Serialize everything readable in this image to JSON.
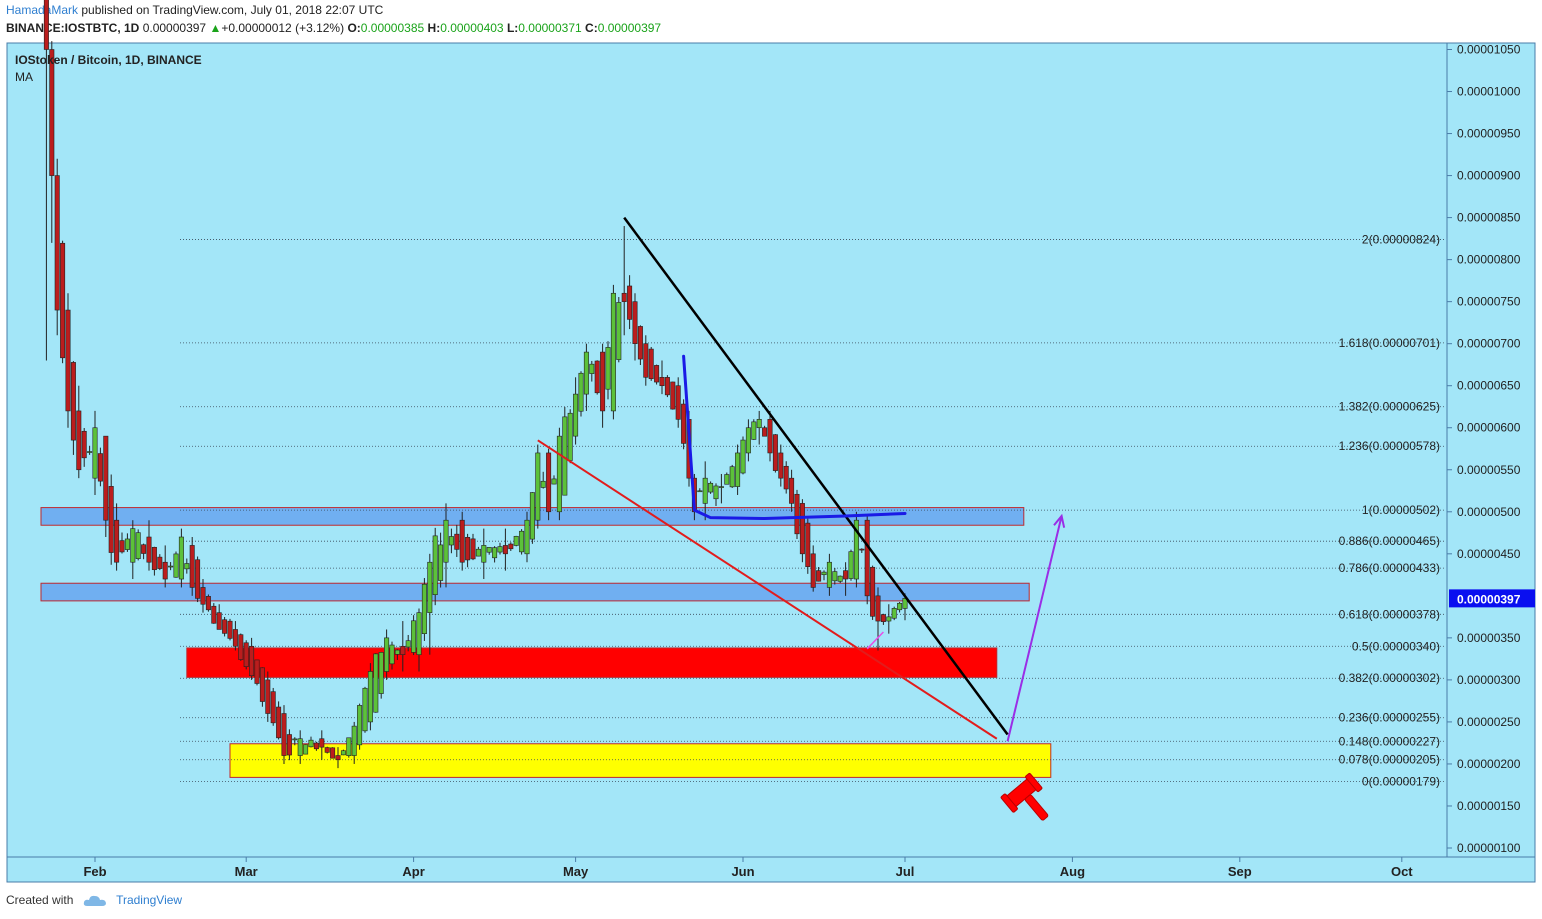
{
  "header": {
    "author": "HamadaMark",
    "published": "published on TradingView.com, July 01, 2018 22:07 UTC",
    "symbol": "BINANCE:IOSTBTC, 1D",
    "last": "0.00000397",
    "up_arrow": "▲",
    "change": "+0.00000012 (+3.12%)",
    "o_label": "O:",
    "o": "0.00000385",
    "h_label": "H:",
    "h": "0.00000403",
    "l_label": "L:",
    "l": "0.00000371",
    "c_label": "C:",
    "c": "0.00000397"
  },
  "legend": {
    "title": "IOStoken / Bitcoin, 1D, BINANCE",
    "indicator": "MA"
  },
  "footer": {
    "created_with": "Created with",
    "brand": "TradingView",
    "logo_icon": "tradingview-cloud-icon"
  },
  "colors": {
    "background": "#a3e6f8",
    "up": "#5cc13a",
    "down": "#bb1d1d",
    "price_tag": "#0a0ff0",
    "red_zone": "#ff0000",
    "yellow_zone": "#ffff00",
    "blue_zone": "#6aa8ef",
    "trendline": "#000000",
    "wedge_line": "#e21c1c",
    "projection": "#9a2ee6",
    "ma": "#1a1ae6"
  },
  "chart_data": {
    "type": "candlestick",
    "title": "IOStoken / Bitcoin, 1D, BINANCE",
    "indicators": [
      "MA"
    ],
    "y_axis": {
      "position": "right",
      "min": 1e-06,
      "max": 1.05e-05,
      "ticks": [
        "0.00001050",
        "0.00001000",
        "0.00000950",
        "0.00000900",
        "0.00000850",
        "0.00000800",
        "0.00000750",
        "0.00000700",
        "0.00000650",
        "0.00000600",
        "0.00000550",
        "0.00000500",
        "0.00000450",
        "0.00000350",
        "0.00000300",
        "0.00000250",
        "0.00000200",
        "0.00000150",
        "0.00000100"
      ],
      "last_price_label": "0.00000397"
    },
    "x_axis": {
      "start": "2018-01-22",
      "end": "2018-10-17",
      "ticks": [
        {
          "date": "2018-02-01",
          "label": "Feb"
        },
        {
          "date": "2018-03-01",
          "label": "Mar"
        },
        {
          "date": "2018-04-01",
          "label": "Apr"
        },
        {
          "date": "2018-05-01",
          "label": "May"
        },
        {
          "date": "2018-06-01",
          "label": "Jun"
        },
        {
          "date": "2018-07-01",
          "label": "Jul"
        },
        {
          "date": "2018-08-01",
          "label": "Aug"
        },
        {
          "date": "2018-09-01",
          "label": "Sep"
        },
        {
          "date": "2018-10-01",
          "label": "Oct"
        }
      ]
    },
    "ohlc_anchors": [
      [
        "2018-01-23",
        11.2,
        12.0,
        6.8,
        10.5
      ],
      [
        "2018-01-24",
        10.5,
        10.6,
        8.2,
        9.0
      ],
      [
        "2018-01-25",
        9.0,
        9.2,
        7.1,
        7.4
      ],
      [
        "2018-01-27",
        7.4,
        7.6,
        6.0,
        6.2
      ],
      [
        "2018-01-29",
        6.2,
        6.5,
        5.4,
        5.5
      ],
      [
        "2018-02-01",
        5.4,
        6.2,
        5.2,
        6.0
      ],
      [
        "2018-02-03",
        5.9,
        5.9,
        4.7,
        4.9
      ],
      [
        "2018-02-05",
        4.9,
        5.1,
        4.3,
        4.4
      ],
      [
        "2018-02-08",
        4.4,
        4.9,
        4.2,
        4.8
      ],
      [
        "2018-02-11",
        4.7,
        4.9,
        4.3,
        4.4
      ],
      [
        "2018-02-14",
        4.4,
        4.6,
        4.1,
        4.2
      ],
      [
        "2018-02-17",
        4.2,
        4.8,
        4.1,
        4.7
      ],
      [
        "2018-02-19",
        4.6,
        4.7,
        4.0,
        4.1
      ],
      [
        "2018-02-21",
        4.1,
        4.2,
        3.8,
        3.9
      ],
      [
        "2018-02-24",
        3.8,
        3.9,
        3.6,
        3.6
      ],
      [
        "2018-02-27",
        3.6,
        3.7,
        3.35,
        3.4
      ],
      [
        "2018-03-02",
        3.4,
        3.5,
        3.0,
        3.05
      ],
      [
        "2018-03-05",
        3.0,
        3.1,
        2.5,
        2.6
      ],
      [
        "2018-03-08",
        2.6,
        2.7,
        2.0,
        2.1
      ],
      [
        "2018-03-11",
        2.1,
        2.4,
        2.0,
        2.3
      ],
      [
        "2018-03-15",
        2.3,
        2.4,
        2.05,
        2.2
      ],
      [
        "2018-03-18",
        2.1,
        2.2,
        1.95,
        2.05
      ],
      [
        "2018-03-21",
        2.1,
        2.5,
        2.0,
        2.45
      ],
      [
        "2018-03-24",
        2.5,
        3.2,
        2.4,
        3.1
      ],
      [
        "2018-03-27",
        3.1,
        3.6,
        3.0,
        3.5
      ],
      [
        "2018-03-30",
        3.4,
        3.7,
        3.1,
        3.3
      ],
      [
        "2018-04-02",
        3.3,
        3.85,
        3.1,
        3.8
      ],
      [
        "2018-04-04",
        3.8,
        4.5,
        3.3,
        4.4
      ],
      [
        "2018-04-07",
        4.4,
        5.1,
        4.1,
        4.9
      ],
      [
        "2018-04-10",
        4.9,
        5.0,
        4.3,
        4.4
      ],
      [
        "2018-04-14",
        4.4,
        4.8,
        4.2,
        4.6
      ],
      [
        "2018-04-18",
        4.6,
        4.8,
        4.3,
        4.5
      ],
      [
        "2018-04-22",
        4.5,
        5.0,
        4.4,
        4.9
      ],
      [
        "2018-04-24",
        4.9,
        5.8,
        4.8,
        5.7
      ],
      [
        "2018-04-26",
        5.7,
        5.75,
        4.9,
        5.0
      ],
      [
        "2018-04-28",
        5.0,
        6.0,
        4.9,
        5.9
      ],
      [
        "2018-05-01",
        5.9,
        6.6,
        5.8,
        6.4
      ],
      [
        "2018-05-03",
        6.4,
        7.0,
        6.2,
        6.9
      ],
      [
        "2018-05-06",
        6.9,
        7.0,
        6.0,
        6.2
      ],
      [
        "2018-05-08",
        6.2,
        7.7,
        6.1,
        7.6
      ],
      [
        "2018-05-10",
        7.6,
        8.4,
        7.1,
        7.5
      ],
      [
        "2018-05-12",
        7.5,
        7.6,
        6.8,
        7.0
      ],
      [
        "2018-05-14",
        7.0,
        7.1,
        6.5,
        6.6
      ],
      [
        "2018-05-17",
        6.6,
        6.8,
        6.4,
        6.5
      ],
      [
        "2018-05-20",
        6.5,
        6.6,
        6.0,
        6.1
      ],
      [
        "2018-05-22",
        6.1,
        6.2,
        5.3,
        5.4
      ],
      [
        "2018-05-23",
        5.4,
        5.45,
        4.9,
        5.0
      ],
      [
        "2018-05-25",
        5.1,
        5.6,
        4.9,
        5.4
      ],
      [
        "2018-05-28",
        5.3,
        5.45,
        5.1,
        5.3
      ],
      [
        "2018-05-31",
        5.3,
        5.8,
        5.2,
        5.7
      ],
      [
        "2018-06-02",
        5.7,
        6.1,
        5.6,
        6.0
      ],
      [
        "2018-06-04",
        6.0,
        6.2,
        5.8,
        6.1
      ],
      [
        "2018-06-06",
        6.1,
        6.2,
        5.6,
        5.7
      ],
      [
        "2018-06-08",
        5.7,
        5.8,
        5.3,
        5.4
      ],
      [
        "2018-06-10",
        5.4,
        5.5,
        5.0,
        5.1
      ],
      [
        "2018-06-12",
        5.1,
        5.15,
        4.4,
        4.5
      ],
      [
        "2018-06-14",
        4.5,
        4.6,
        4.05,
        4.1
      ],
      [
        "2018-06-17",
        4.1,
        4.5,
        4.0,
        4.4
      ],
      [
        "2018-06-20",
        4.3,
        4.4,
        4.0,
        4.2
      ],
      [
        "2018-06-22",
        4.2,
        5.0,
        4.1,
        4.9
      ],
      [
        "2018-06-24",
        4.9,
        4.95,
        3.9,
        4.0
      ],
      [
        "2018-06-26",
        4.0,
        4.1,
        3.35,
        3.7
      ],
      [
        "2018-06-28",
        3.7,
        3.9,
        3.55,
        3.75
      ],
      [
        "2018-07-01",
        3.85,
        4.03,
        3.71,
        3.97
      ]
    ],
    "horizontal_levels": [
      {
        "label": "2(0.00000824)",
        "value": 8.24
      },
      {
        "label": "1.618(0.00000701)",
        "value": 7.01
      },
      {
        "label": "1.382(0.00000625)",
        "value": 6.25
      },
      {
        "label": "1.236(0.00000578)",
        "value": 5.78
      },
      {
        "label": "1(0.00000502)",
        "value": 5.02
      },
      {
        "label": "0.886(0.00000465)",
        "value": 4.65
      },
      {
        "label": "0.786(0.00000433)",
        "value": 4.33
      },
      {
        "label": "0.618(0.00000378)",
        "value": 3.78
      },
      {
        "label": "0.5(0.00000340)",
        "value": 3.4
      },
      {
        "label": "0.382(0.00000302)",
        "value": 3.02
      },
      {
        "label": "0.236(0.00000255)",
        "value": 2.55
      },
      {
        "label": "0.148(0.00000227)",
        "value": 2.27
      },
      {
        "label": "0.078(0.00000205)",
        "value": 2.05
      },
      {
        "label": "0(0.00000179)",
        "value": 1.79
      }
    ],
    "zones": [
      {
        "name": "blue-zone-upper",
        "color": "#6aa8ef",
        "from": "2018-01-22",
        "to": "2018-07-23",
        "low": 4.84,
        "high": 5.05
      },
      {
        "name": "blue-zone-lower",
        "color": "#6aa8ef",
        "from": "2018-01-22",
        "to": "2018-07-24",
        "low": 3.94,
        "high": 4.15
      },
      {
        "name": "red-zone",
        "color": "#ff0000",
        "from": "2018-02-18",
        "to": "2018-07-18",
        "low": 3.03,
        "high": 3.38
      },
      {
        "name": "yellow-zone",
        "color": "#ffff00",
        "from": "2018-02-26",
        "to": "2018-07-28",
        "low": 1.84,
        "high": 2.24
      }
    ],
    "drawings": [
      {
        "name": "descending-trendline",
        "color": "#000000",
        "points": [
          [
            "2018-05-10",
            8.5
          ],
          [
            "2018-07-20",
            2.35
          ]
        ]
      },
      {
        "name": "wedge-support-line",
        "color": "#e21c1c",
        "points": [
          [
            "2018-04-24",
            5.85
          ],
          [
            "2018-07-18",
            2.3
          ]
        ]
      },
      {
        "name": "ma-curve",
        "color": "#1a1ae6",
        "points": [
          [
            "2018-05-21",
            6.85
          ],
          [
            "2018-05-23",
            5.02
          ],
          [
            "2018-05-26",
            4.93
          ],
          [
            "2018-06-05",
            4.92
          ],
          [
            "2018-06-20",
            4.95
          ],
          [
            "2018-07-01",
            4.98
          ]
        ]
      },
      {
        "name": "projection-arrow",
        "color": "#9a2ee6",
        "points": [
          [
            "2018-07-20",
            2.27
          ],
          [
            "2018-07-30",
            4.95
          ]
        ]
      },
      {
        "name": "small-magenta-line",
        "color": "#e64ee6",
        "points": [
          [
            "2018-06-24",
            3.37
          ],
          [
            "2018-06-27",
            3.57
          ]
        ]
      }
    ],
    "annotations": [
      {
        "name": "gavel-icon",
        "color": "#ff0000",
        "at": [
          "2018-07-23",
          1.68
        ]
      }
    ]
  }
}
